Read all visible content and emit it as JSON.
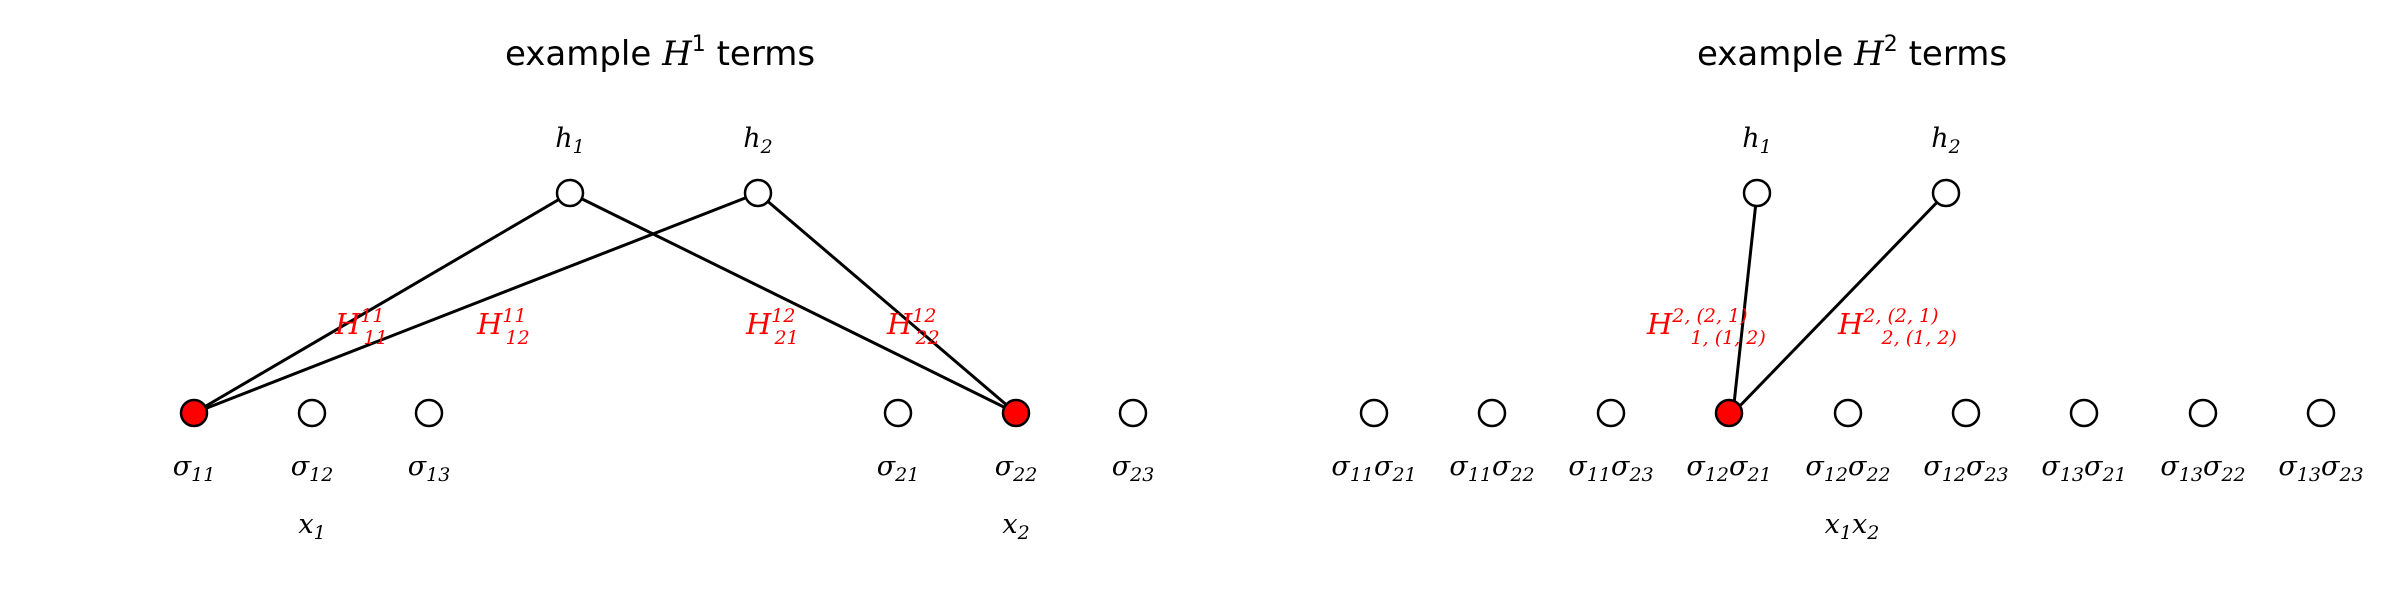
{
  "colors": {
    "highlight": "#ff0000",
    "ink": "#000000"
  },
  "panels": [
    {
      "title": {
        "prefix": "example ",
        "sym": "H",
        "sup": "1",
        "suffix": " terms"
      },
      "hidden": [
        {
          "sym": "h",
          "sub": "1"
        },
        {
          "sym": "h",
          "sub": "2"
        }
      ],
      "visible": [
        {
          "sym": "σ",
          "sub": "11",
          "active": true
        },
        {
          "sym": "σ",
          "sub": "12",
          "active": false
        },
        {
          "sym": "σ",
          "sub": "13",
          "active": false
        },
        {
          "sym": "σ",
          "sub": "21",
          "active": false
        },
        {
          "sym": "σ",
          "sub": "22",
          "active": true
        },
        {
          "sym": "σ",
          "sub": "23",
          "active": false
        }
      ],
      "groups": [
        {
          "sym": "x",
          "sub": "1"
        },
        {
          "sym": "x",
          "sub": "2"
        }
      ],
      "edges": [
        {
          "sym": "H",
          "sub": "11",
          "sup": "11"
        },
        {
          "sym": "H",
          "sub": "12",
          "sup": "11"
        },
        {
          "sym": "H",
          "sub": "21",
          "sup": "12"
        },
        {
          "sym": "H",
          "sub": "22",
          "sup": "12"
        }
      ]
    },
    {
      "title": {
        "prefix": "example ",
        "sym": "H",
        "sup": "2",
        "suffix": " terms"
      },
      "hidden": [
        {
          "sym": "h",
          "sub": "1"
        },
        {
          "sym": "h",
          "sub": "2"
        }
      ],
      "visible": [
        {
          "a": "11",
          "b": "21",
          "active": false
        },
        {
          "a": "11",
          "b": "22",
          "active": false
        },
        {
          "a": "11",
          "b": "23",
          "active": false
        },
        {
          "a": "12",
          "b": "21",
          "active": true
        },
        {
          "a": "12",
          "b": "22",
          "active": false
        },
        {
          "a": "12",
          "b": "23",
          "active": false
        },
        {
          "a": "13",
          "b": "21",
          "active": false
        },
        {
          "a": "13",
          "b": "22",
          "active": false
        },
        {
          "a": "13",
          "b": "23",
          "active": false
        }
      ],
      "group_label": {
        "a": "1",
        "b": "2"
      },
      "edges": [
        {
          "sym": "H",
          "sup": "2, (2, 1)",
          "sub": "1, (1, 2)"
        },
        {
          "sym": "H",
          "sup": "2, (2, 1)",
          "sub": "2, (1, 2)"
        }
      ]
    }
  ]
}
